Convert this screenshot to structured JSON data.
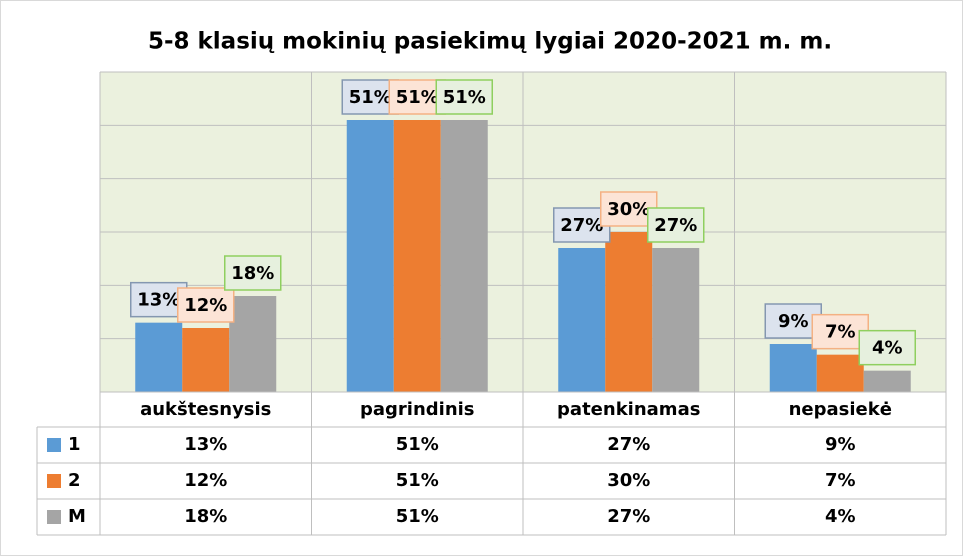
{
  "chart_data": {
    "type": "bar",
    "title": "5-8 klasių mokinių pasiekimų lygiai 2020-2021 m. m.",
    "categories": [
      "aukštesnysis",
      "pagrindinis",
      "patenkinamas",
      "nepasiekė"
    ],
    "series": [
      {
        "name": "1",
        "color": "#5b9bd5",
        "values": [
          13,
          51,
          27,
          9
        ],
        "value_labels": [
          "13%",
          "51%",
          "27%",
          "9%"
        ]
      },
      {
        "name": "2",
        "color": "#ed7d31",
        "values": [
          12,
          51,
          30,
          7
        ],
        "value_labels": [
          "12%",
          "51%",
          "30%",
          "7%"
        ]
      },
      {
        "name": "M",
        "color": "#a5a5a5",
        "values": [
          18,
          51,
          27,
          4
        ],
        "value_labels": [
          "18%",
          "51%",
          "27%",
          "4%"
        ]
      }
    ],
    "ylim": [
      0,
      60
    ],
    "yticks": [
      0,
      10,
      20,
      30,
      40,
      50,
      60
    ],
    "grid": true,
    "data_table": true
  }
}
